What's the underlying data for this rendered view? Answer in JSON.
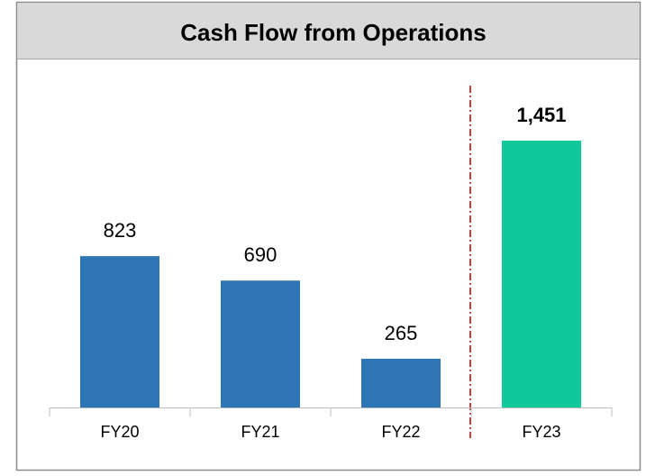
{
  "chart_data": {
    "type": "bar",
    "title": "Cash Flow from Operations",
    "categories": [
      "FY20",
      "FY21",
      "FY22",
      "FY23"
    ],
    "values": [
      823,
      690,
      265,
      1451
    ],
    "value_labels": [
      "823",
      "690",
      "265",
      "1,451"
    ],
    "colors": [
      "#2e75b6",
      "#2e75b6",
      "#2e75b6",
      "#10c99b"
    ]
  }
}
